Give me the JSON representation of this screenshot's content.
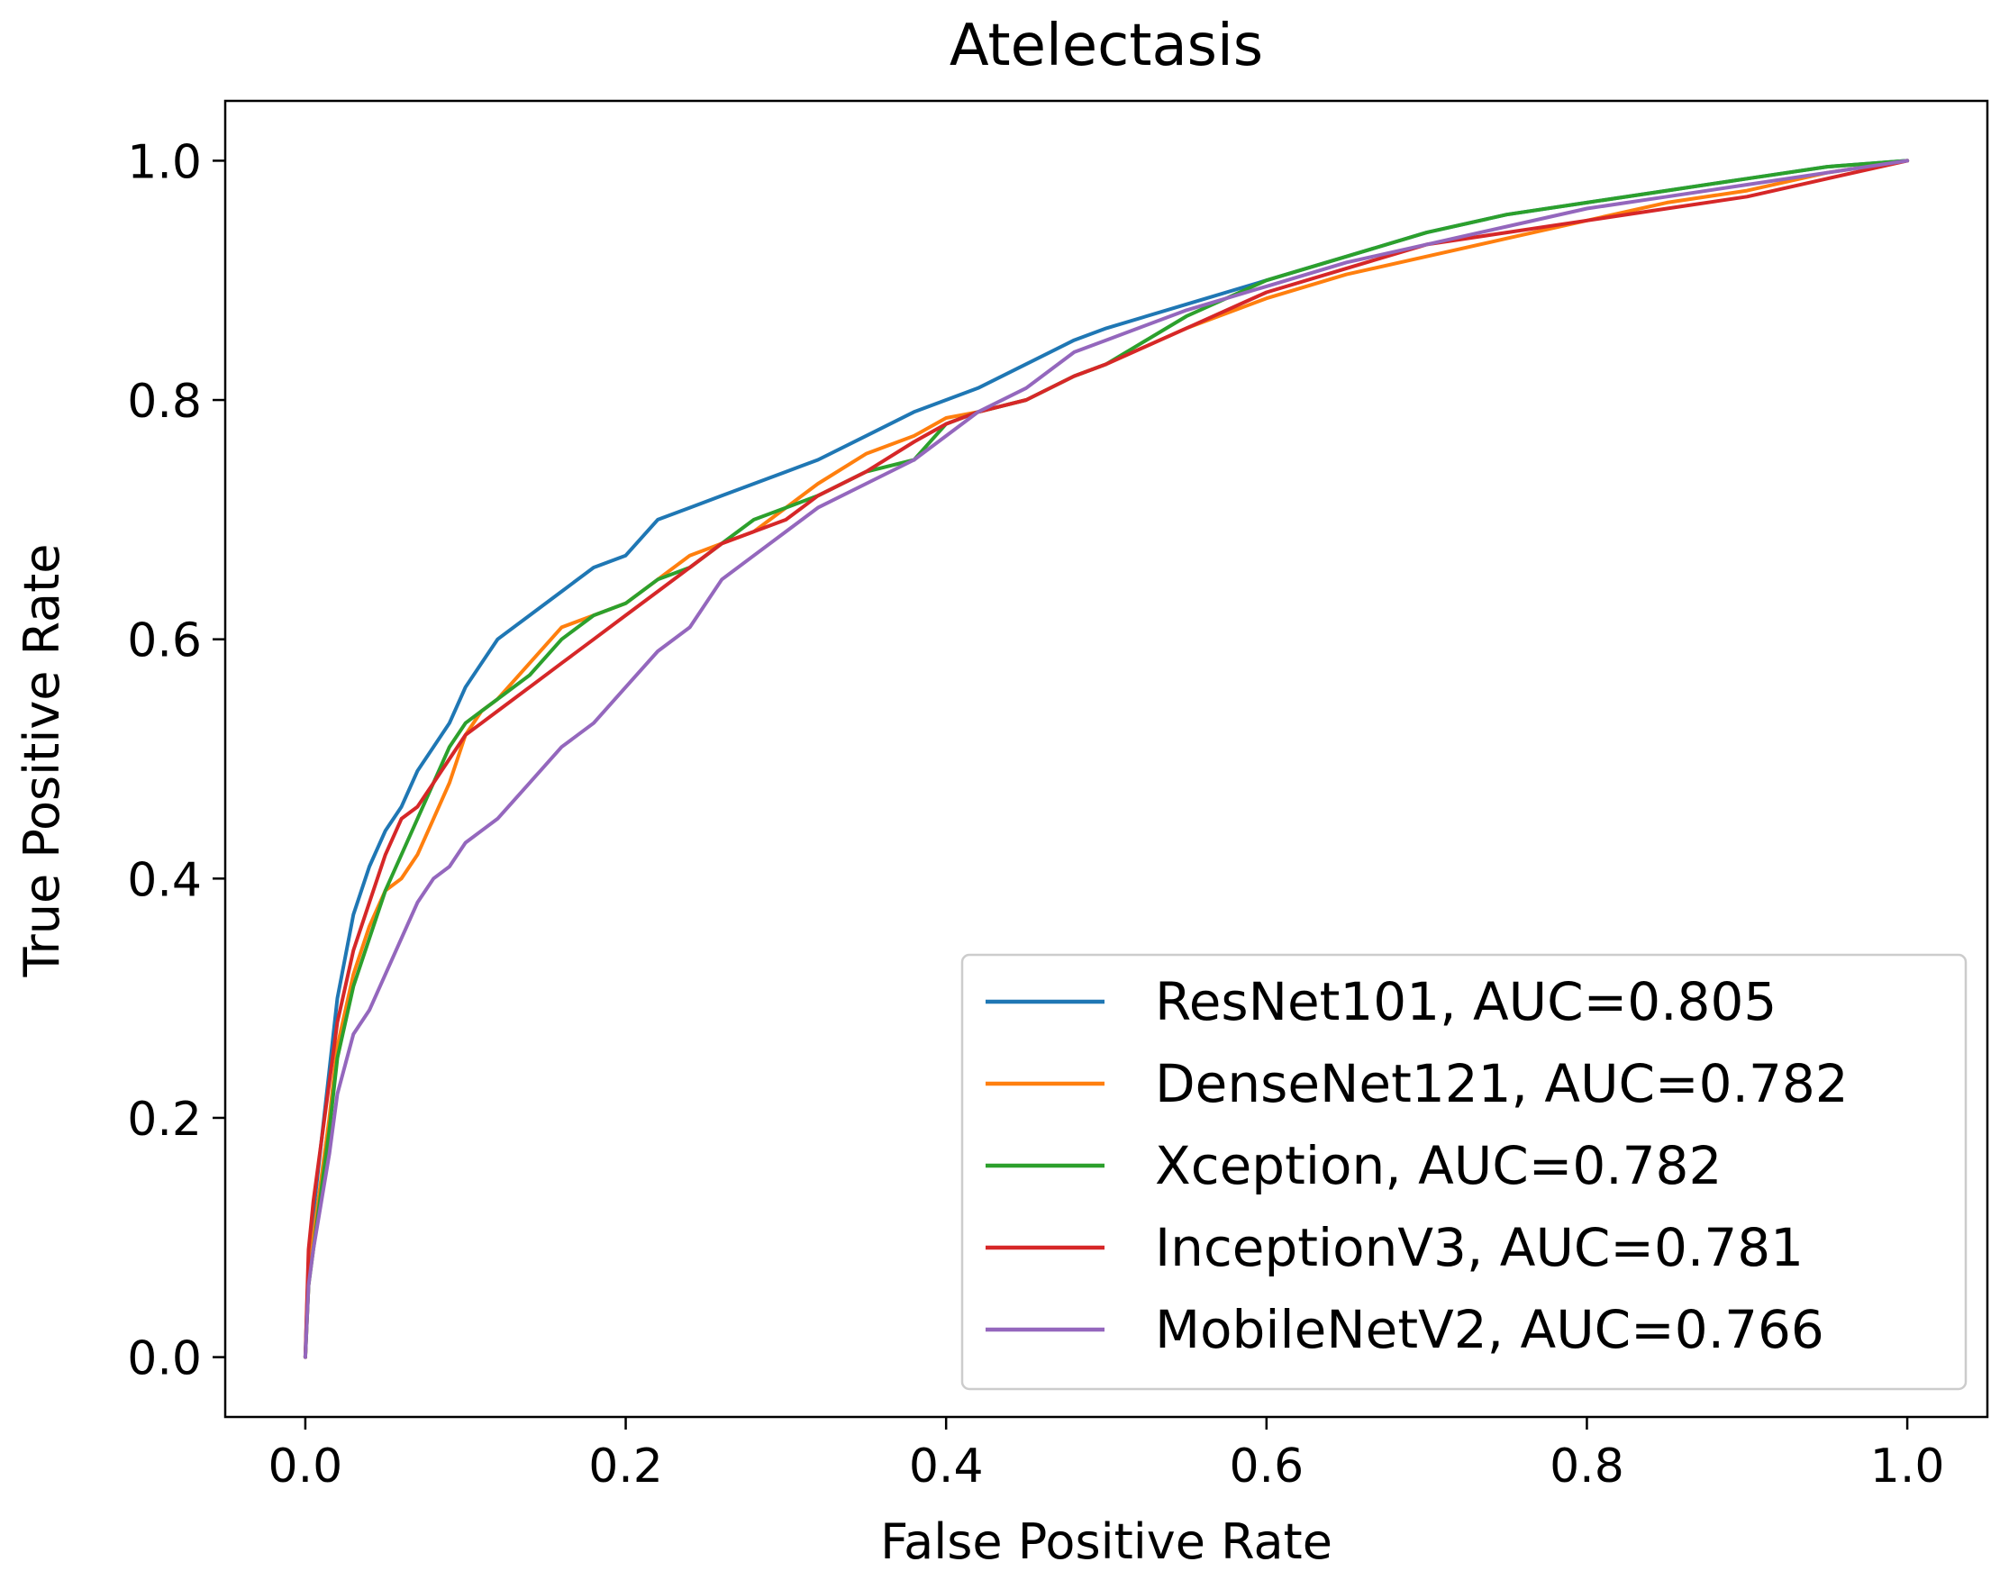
{
  "chart_data": {
    "type": "line",
    "title": "Atelectasis",
    "xlabel": "False Positive Rate",
    "ylabel": "True Positive Rate",
    "xlim": [
      -0.05,
      1.05
    ],
    "ylim": [
      -0.05,
      1.05
    ],
    "xticks": [
      0.0,
      0.2,
      0.4,
      0.6,
      0.8,
      1.0
    ],
    "yticks": [
      0.0,
      0.2,
      0.4,
      0.6,
      0.8,
      1.0
    ],
    "xtick_labels": [
      "0.0",
      "0.2",
      "0.4",
      "0.6",
      "0.8",
      "1.0"
    ],
    "ytick_labels": [
      "0.0",
      "0.2",
      "0.4",
      "0.6",
      "0.8",
      "1.0"
    ],
    "grid": false,
    "legend_position": "lower-right",
    "series": [
      {
        "name": "ResNet101, AUC=0.805",
        "color": "#1f77b4",
        "x": [
          0,
          0.002,
          0.005,
          0.01,
          0.015,
          0.02,
          0.03,
          0.04,
          0.05,
          0.06,
          0.07,
          0.08,
          0.09,
          0.1,
          0.11,
          0.12,
          0.14,
          0.16,
          0.18,
          0.2,
          0.22,
          0.24,
          0.26,
          0.28,
          0.3,
          0.32,
          0.35,
          0.38,
          0.4,
          0.42,
          0.45,
          0.48,
          0.5,
          0.55,
          0.6,
          0.65,
          0.7,
          0.75,
          0.8,
          0.85,
          0.9,
          0.95,
          1.0
        ],
        "y": [
          0,
          0.08,
          0.12,
          0.18,
          0.24,
          0.3,
          0.37,
          0.41,
          0.44,
          0.46,
          0.49,
          0.51,
          0.53,
          0.56,
          0.58,
          0.6,
          0.62,
          0.64,
          0.66,
          0.67,
          0.7,
          0.71,
          0.72,
          0.73,
          0.74,
          0.75,
          0.77,
          0.79,
          0.8,
          0.81,
          0.83,
          0.85,
          0.86,
          0.88,
          0.9,
          0.92,
          0.94,
          0.955,
          0.965,
          0.975,
          0.985,
          0.995,
          1.0
        ]
      },
      {
        "name": "DenseNet121, AUC=0.782",
        "color": "#ff7f0e",
        "x": [
          0,
          0.002,
          0.005,
          0.01,
          0.015,
          0.02,
          0.03,
          0.04,
          0.05,
          0.06,
          0.07,
          0.08,
          0.09,
          0.1,
          0.11,
          0.12,
          0.14,
          0.16,
          0.18,
          0.2,
          0.22,
          0.24,
          0.26,
          0.28,
          0.3,
          0.32,
          0.35,
          0.38,
          0.4,
          0.42,
          0.45,
          0.48,
          0.5,
          0.55,
          0.6,
          0.65,
          0.7,
          0.75,
          0.8,
          0.85,
          0.9,
          0.95,
          1.0
        ],
        "y": [
          0,
          0.06,
          0.1,
          0.15,
          0.2,
          0.26,
          0.32,
          0.36,
          0.39,
          0.4,
          0.42,
          0.45,
          0.48,
          0.52,
          0.54,
          0.55,
          0.58,
          0.61,
          0.62,
          0.63,
          0.65,
          0.67,
          0.68,
          0.69,
          0.71,
          0.73,
          0.755,
          0.77,
          0.785,
          0.79,
          0.8,
          0.82,
          0.83,
          0.86,
          0.885,
          0.905,
          0.92,
          0.935,
          0.95,
          0.965,
          0.975,
          0.99,
          1.0
        ]
      },
      {
        "name": "Xception, AUC=0.782",
        "color": "#2ca02c",
        "x": [
          0,
          0.002,
          0.005,
          0.01,
          0.015,
          0.02,
          0.03,
          0.04,
          0.05,
          0.06,
          0.07,
          0.08,
          0.09,
          0.1,
          0.11,
          0.12,
          0.14,
          0.16,
          0.18,
          0.2,
          0.22,
          0.24,
          0.26,
          0.28,
          0.3,
          0.32,
          0.35,
          0.38,
          0.4,
          0.42,
          0.45,
          0.48,
          0.5,
          0.55,
          0.6,
          0.65,
          0.7,
          0.75,
          0.8,
          0.85,
          0.9,
          0.95,
          1.0
        ],
        "y": [
          0,
          0.06,
          0.09,
          0.14,
          0.19,
          0.25,
          0.31,
          0.35,
          0.39,
          0.42,
          0.45,
          0.48,
          0.51,
          0.53,
          0.54,
          0.55,
          0.57,
          0.6,
          0.62,
          0.63,
          0.65,
          0.66,
          0.68,
          0.7,
          0.71,
          0.72,
          0.74,
          0.75,
          0.78,
          0.79,
          0.8,
          0.82,
          0.83,
          0.87,
          0.9,
          0.92,
          0.94,
          0.955,
          0.965,
          0.975,
          0.985,
          0.995,
          1.0
        ]
      },
      {
        "name": "InceptionV3, AUC=0.781",
        "color": "#d62728",
        "x": [
          0,
          0.002,
          0.005,
          0.01,
          0.015,
          0.02,
          0.03,
          0.04,
          0.05,
          0.06,
          0.07,
          0.08,
          0.09,
          0.1,
          0.11,
          0.12,
          0.14,
          0.16,
          0.18,
          0.2,
          0.22,
          0.24,
          0.26,
          0.28,
          0.3,
          0.32,
          0.35,
          0.38,
          0.4,
          0.42,
          0.45,
          0.48,
          0.5,
          0.55,
          0.6,
          0.65,
          0.7,
          0.75,
          0.8,
          0.85,
          0.9,
          0.95,
          1.0
        ],
        "y": [
          0,
          0.09,
          0.13,
          0.18,
          0.23,
          0.28,
          0.34,
          0.38,
          0.42,
          0.45,
          0.46,
          0.48,
          0.5,
          0.52,
          0.53,
          0.54,
          0.56,
          0.58,
          0.6,
          0.62,
          0.64,
          0.66,
          0.68,
          0.69,
          0.7,
          0.72,
          0.74,
          0.765,
          0.78,
          0.79,
          0.8,
          0.82,
          0.83,
          0.86,
          0.89,
          0.91,
          0.93,
          0.94,
          0.95,
          0.96,
          0.97,
          0.985,
          1.0
        ]
      },
      {
        "name": "MobileNetV2, AUC=0.766",
        "color": "#9467bd",
        "x": [
          0,
          0.002,
          0.005,
          0.01,
          0.015,
          0.02,
          0.03,
          0.04,
          0.05,
          0.06,
          0.07,
          0.08,
          0.09,
          0.1,
          0.11,
          0.12,
          0.14,
          0.16,
          0.18,
          0.2,
          0.22,
          0.24,
          0.26,
          0.28,
          0.3,
          0.32,
          0.35,
          0.38,
          0.4,
          0.42,
          0.45,
          0.48,
          0.5,
          0.55,
          0.6,
          0.65,
          0.7,
          0.75,
          0.8,
          0.85,
          0.9,
          0.95,
          1.0
        ],
        "y": [
          0,
          0.06,
          0.09,
          0.13,
          0.17,
          0.22,
          0.27,
          0.29,
          0.32,
          0.35,
          0.38,
          0.4,
          0.41,
          0.43,
          0.44,
          0.45,
          0.48,
          0.51,
          0.53,
          0.56,
          0.59,
          0.61,
          0.65,
          0.67,
          0.69,
          0.71,
          0.73,
          0.75,
          0.77,
          0.79,
          0.81,
          0.84,
          0.85,
          0.875,
          0.895,
          0.915,
          0.93,
          0.945,
          0.96,
          0.97,
          0.98,
          0.99,
          1.0
        ]
      }
    ]
  }
}
